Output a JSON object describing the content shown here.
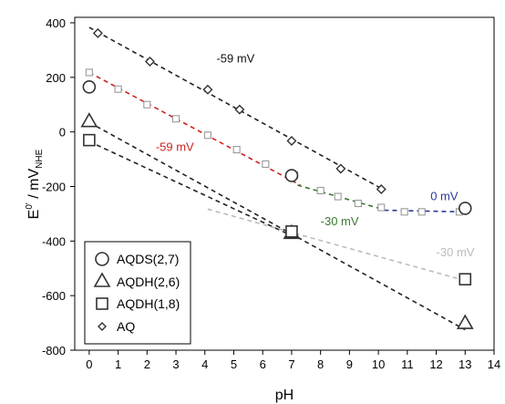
{
  "chart_data": {
    "type": "scatter",
    "xlabel": "pH",
    "ylabel": {
      "main": "E",
      "sup": "0'",
      "mid": " / mV",
      "sub": "NHE"
    },
    "xlim": [
      -0.5,
      14
    ],
    "ylim": [
      -800,
      420
    ],
    "xticks": [
      0,
      1,
      2,
      3,
      4,
      5,
      6,
      7,
      8,
      9,
      10,
      11,
      12,
      13,
      14
    ],
    "yticks": [
      -800,
      -600,
      -400,
      -200,
      0,
      200,
      400
    ],
    "series": [
      {
        "name": "AQDS(2,7)",
        "marker": "circle",
        "points": [
          [
            0,
            165
          ],
          [
            7,
            -160
          ],
          [
            13,
            -280
          ]
        ]
      },
      {
        "name": "AQDH(2,6)",
        "marker": "triangle",
        "points": [
          [
            0,
            40
          ],
          [
            7,
            -370
          ],
          [
            13,
            -700
          ]
        ]
      },
      {
        "name": "AQDH(1,8)",
        "marker": "square",
        "points": [
          [
            0,
            -30
          ],
          [
            7,
            -365
          ],
          [
            13,
            -540
          ]
        ]
      },
      {
        "name": "AQ",
        "marker": "diamond",
        "points": [
          [
            0.3,
            362
          ],
          [
            2.1,
            258
          ],
          [
            4.1,
            155
          ],
          [
            5.2,
            82
          ],
          [
            7.0,
            -33
          ],
          [
            8.7,
            -135
          ],
          [
            10.1,
            -210
          ]
        ]
      }
    ],
    "small_squares": {
      "color": "#999999",
      "points": [
        [
          0,
          218
        ],
        [
          1,
          157
        ],
        [
          2,
          100
        ],
        [
          3,
          48
        ],
        [
          4.1,
          -12
        ],
        [
          5.1,
          -65
        ],
        [
          6.1,
          -118
        ],
        [
          7.1,
          -158
        ],
        [
          8.0,
          -215
        ],
        [
          8.6,
          -237
        ],
        [
          9.3,
          -262
        ],
        [
          10.1,
          -277
        ],
        [
          10.9,
          -293
        ],
        [
          11.5,
          -293
        ],
        [
          12.8,
          -293
        ]
      ]
    },
    "lines": [
      {
        "from": [
          0,
          383
        ],
        "to": [
          10.2,
          -213
        ],
        "color": "#222222"
      },
      {
        "from": [
          0,
          218
        ],
        "to": [
          7.3,
          -195
        ],
        "color": "#cc2222"
      },
      {
        "from": [
          7.2,
          -195
        ],
        "to": [
          10.2,
          -285
        ],
        "color": "#3a7a30"
      },
      {
        "from": [
          10.2,
          -287
        ],
        "to": [
          13,
          -293
        ],
        "color": "#2a3a9a"
      },
      {
        "from": [
          0,
          35
        ],
        "to": [
          13,
          -725
        ],
        "color": "#222222"
      },
      {
        "from": [
          0,
          -35
        ],
        "to": [
          7,
          -380
        ],
        "color": "#222222"
      },
      {
        "from": [
          4.1,
          -283
        ],
        "to": [
          13,
          -545
        ],
        "color": "#bbbbbb"
      }
    ],
    "annotations": [
      {
        "text": "-59 mV",
        "x": 4.4,
        "y": 255,
        "color": "#111111"
      },
      {
        "text": "-59 mV",
        "x": 2.3,
        "y": -70,
        "color": "#cc2222"
      },
      {
        "text": "-30 mV",
        "x": 8.0,
        "y": -342,
        "color": "#3a7a30"
      },
      {
        "text": "0 mV",
        "x": 11.8,
        "y": -250,
        "color": "#2a3a9a"
      },
      {
        "text": "-30 mV",
        "x": 12.0,
        "y": -455,
        "color": "#bbbbbb"
      }
    ],
    "legend": {
      "position": "bottom-left",
      "entries": [
        "AQDS(2,7)",
        "AQDH(2,6)",
        "AQDH(1,8)",
        "AQ"
      ]
    }
  }
}
